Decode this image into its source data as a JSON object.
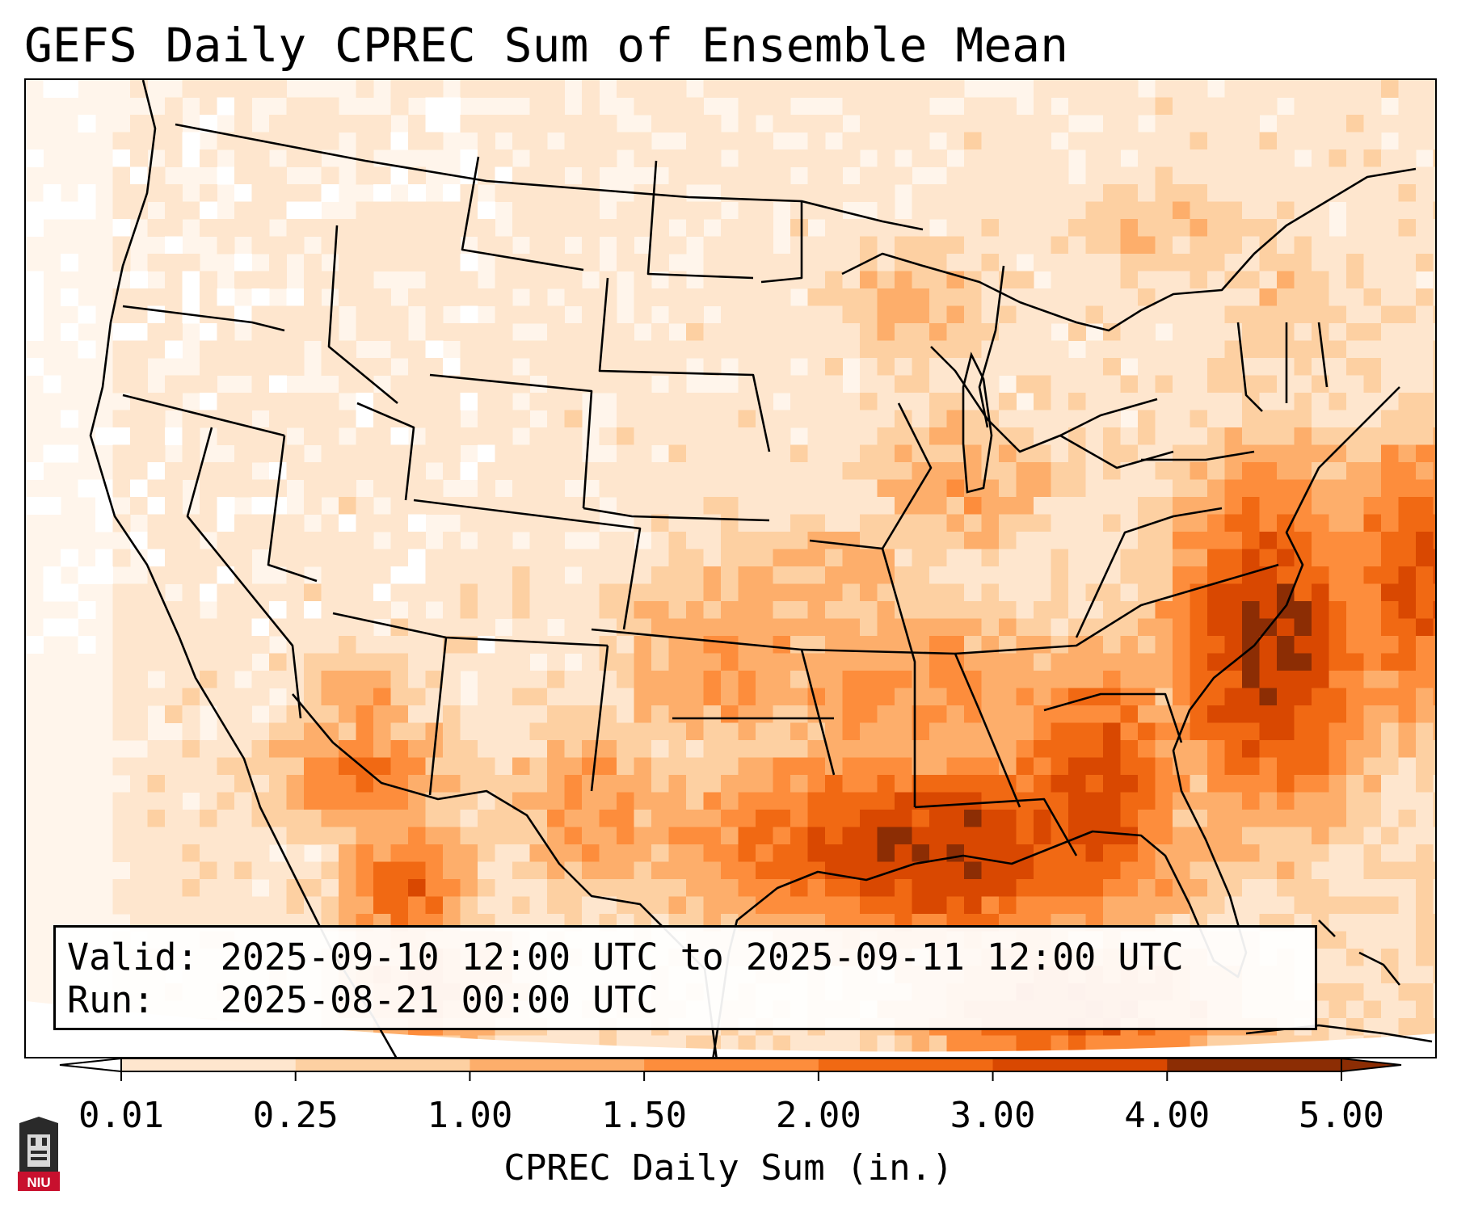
{
  "title": "GEFS Daily CPREC Sum of Ensemble Mean",
  "info": {
    "valid_line": "Valid: 2025-09-10 12:00 UTC to 2025-09-11 12:00 UTC",
    "run_line": "Run:   2025-08-21 00:00 UTC"
  },
  "colorbar": {
    "label": "CPREC Daily Sum (in.)",
    "ticks": [
      "0.01",
      "0.25",
      "1.00",
      "1.50",
      "2.00",
      "3.00",
      "4.00",
      "5.00"
    ],
    "colors": [
      "#fff5eb",
      "#fee6ce",
      "#fdd0a2",
      "#fdae6b",
      "#fd8d3c",
      "#f16913",
      "#d94801",
      "#8c2d04"
    ],
    "under_color": "#ffffff",
    "over_color": "#8c2d04"
  },
  "logo_text": "NIU",
  "colors": {
    "background": "#ffffff",
    "borders": "#000000"
  }
}
